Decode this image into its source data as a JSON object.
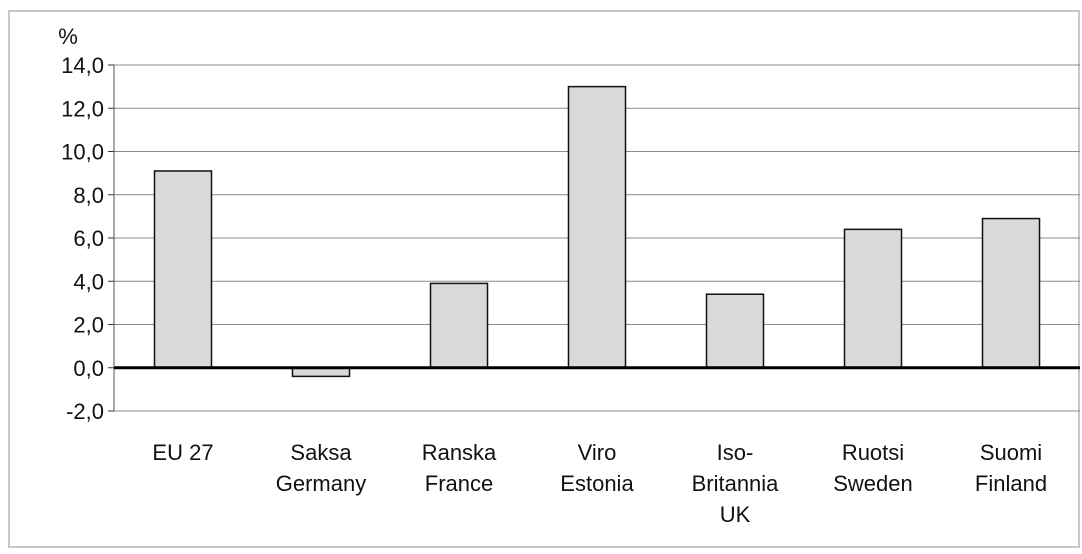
{
  "chart_data": {
    "type": "bar",
    "title": "",
    "xlabel": "",
    "ylabel": "%",
    "ylim": [
      -2.0,
      14.0
    ],
    "yticks": [
      -2.0,
      0.0,
      2.0,
      4.0,
      6.0,
      8.0,
      10.0,
      12.0,
      14.0
    ],
    "ytick_labels": [
      "-2,0",
      "0,0",
      "2,0",
      "4,0",
      "6,0",
      "8,0",
      "10,0",
      "12,0",
      "14,0"
    ],
    "grid": true,
    "legend": "none",
    "categories": [
      [
        "EU 27"
      ],
      [
        "Saksa",
        "Germany"
      ],
      [
        "Ranska",
        "France"
      ],
      [
        "Viro",
        "Estonia"
      ],
      [
        "Iso-",
        "Britannia",
        "UK"
      ],
      [
        "Ruotsi",
        "Sweden"
      ],
      [
        "Suomi",
        "Finland"
      ]
    ],
    "values": [
      9.1,
      -0.4,
      3.9,
      13.0,
      3.4,
      6.4,
      6.9
    ],
    "colors": {
      "bar_fill": "#d9d9d9",
      "bar_stroke": "#111111",
      "grid": "#8c8c8c",
      "zero_line": "#000000",
      "frame": "#b5b5b5"
    }
  }
}
